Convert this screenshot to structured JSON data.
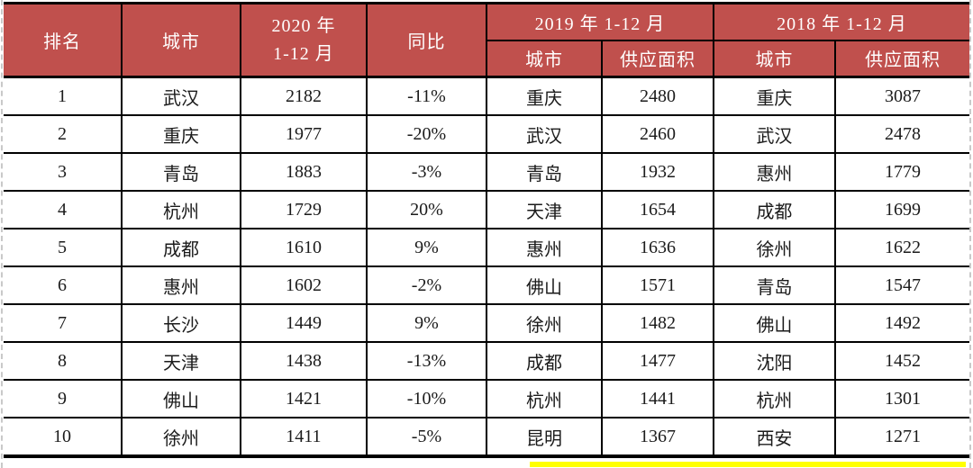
{
  "colors": {
    "header_bg": "#c0504d",
    "header_text": "#ffffff",
    "body_text": "#1b1b1b",
    "border": "#000000",
    "highlight_bar": "#ffff00",
    "marquee": "#c9c9c9"
  },
  "chart_data": {
    "type": "table",
    "header": {
      "rank": "排名",
      "city": "城市",
      "y2020_line1": "2020 年",
      "y2020_line2": "1-12 月",
      "yoy": "同比",
      "group_2019": "2019 年 1-12 月",
      "group_2018": "2018 年 1-12 月",
      "sub_city_2019": "城市",
      "sub_supply_2019": "供应面积",
      "sub_city_2018": "城市",
      "sub_supply_2018": "供应面积"
    },
    "columns": [
      "rank",
      "city",
      "supply_2020",
      "yoy",
      "city_2019",
      "supply_2019",
      "city_2018",
      "supply_2018"
    ],
    "rows": [
      {
        "rank": "1",
        "city": "武汉",
        "supply_2020": "2182",
        "yoy": "-11%",
        "city_2019": "重庆",
        "supply_2019": "2480",
        "city_2018": "重庆",
        "supply_2018": "3087"
      },
      {
        "rank": "2",
        "city": "重庆",
        "supply_2020": "1977",
        "yoy": "-20%",
        "city_2019": "武汉",
        "supply_2019": "2460",
        "city_2018": "武汉",
        "supply_2018": "2478"
      },
      {
        "rank": "3",
        "city": "青岛",
        "supply_2020": "1883",
        "yoy": "-3%",
        "city_2019": "青岛",
        "supply_2019": "1932",
        "city_2018": "惠州",
        "supply_2018": "1779"
      },
      {
        "rank": "4",
        "city": "杭州",
        "supply_2020": "1729",
        "yoy": "20%",
        "city_2019": "天津",
        "supply_2019": "1654",
        "city_2018": "成都",
        "supply_2018": "1699"
      },
      {
        "rank": "5",
        "city": "成都",
        "supply_2020": "1610",
        "yoy": "9%",
        "city_2019": "惠州",
        "supply_2019": "1636",
        "city_2018": "徐州",
        "supply_2018": "1622"
      },
      {
        "rank": "6",
        "city": "惠州",
        "supply_2020": "1602",
        "yoy": "-2%",
        "city_2019": "佛山",
        "supply_2019": "1571",
        "city_2018": "青岛",
        "supply_2018": "1547"
      },
      {
        "rank": "7",
        "city": "长沙",
        "supply_2020": "1449",
        "yoy": "9%",
        "city_2019": "徐州",
        "supply_2019": "1482",
        "city_2018": "佛山",
        "supply_2018": "1492"
      },
      {
        "rank": "8",
        "city": "天津",
        "supply_2020": "1438",
        "yoy": "-13%",
        "city_2019": "成都",
        "supply_2019": "1477",
        "city_2018": "沈阳",
        "supply_2018": "1452"
      },
      {
        "rank": "9",
        "city": "佛山",
        "supply_2020": "1421",
        "yoy": "-10%",
        "city_2019": "杭州",
        "supply_2019": "1441",
        "city_2018": "杭州",
        "supply_2018": "1301"
      },
      {
        "rank": "10",
        "city": "徐州",
        "supply_2020": "1411",
        "yoy": "-5%",
        "city_2019": "昆明",
        "supply_2019": "1367",
        "city_2018": "西安",
        "supply_2018": "1271"
      }
    ]
  }
}
